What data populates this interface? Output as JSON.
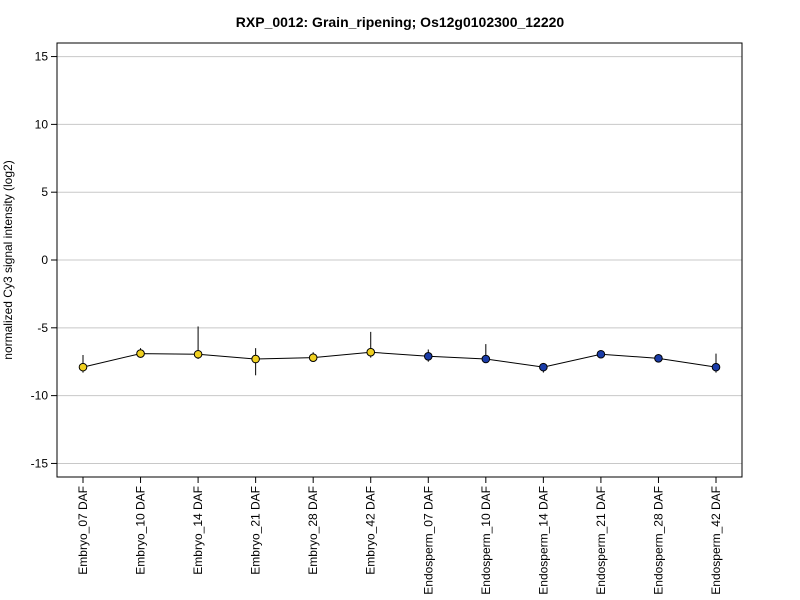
{
  "chart_data": {
    "type": "line",
    "title": "RXP_0012: Grain_ripening; Os12g0102300_12220",
    "xlabel": "",
    "ylabel": "normalized Cy3 signal intensity (log2)",
    "ylim": [
      -16,
      16
    ],
    "yticks": [
      -15,
      -10,
      -5,
      0,
      5,
      10,
      15
    ],
    "grid": true,
    "categories": [
      "Embryo_07 DAF",
      "Embryo_10 DAF",
      "Embryo_14 DAF",
      "Embryo_21 DAF",
      "Embryo_28 DAF",
      "Embryo_42 DAF",
      "Endosperm_07 DAF",
      "Endosperm_10 DAF",
      "Endosperm_14 DAF",
      "Endosperm_21 DAF",
      "Endosperm_28 DAF",
      "Endosperm_42 DAF"
    ],
    "series": [
      {
        "values": [
          -7.9,
          -6.9,
          -6.95,
          -7.3,
          -7.2,
          -6.8,
          -7.1,
          -7.3,
          -7.9,
          -6.95,
          -7.25,
          -7.9
        ],
        "error_low": [
          -8.3,
          -7.2,
          -7.3,
          -8.5,
          -7.5,
          -7.2,
          -7.5,
          -7.5,
          -8.3,
          -7.1,
          -7.3,
          -8.3
        ],
        "error_high": [
          -7.0,
          -6.5,
          -4.9,
          -6.5,
          -6.8,
          -5.3,
          -6.6,
          -6.2,
          -7.6,
          -6.8,
          -7.1,
          -6.9
        ],
        "point_colors": [
          "#f0d020",
          "#f0d020",
          "#f0d020",
          "#f0d020",
          "#f0d020",
          "#f0d020",
          "#1a3ca8",
          "#1a3ca8",
          "#1a3ca8",
          "#1a3ca8",
          "#1a3ca8",
          "#1a3ca8"
        ]
      }
    ],
    "colors": {
      "embryo_point": "#f0d020",
      "endosperm_point": "#1a3ca8",
      "line": "#000000",
      "grid": "#c8c8c8"
    }
  }
}
